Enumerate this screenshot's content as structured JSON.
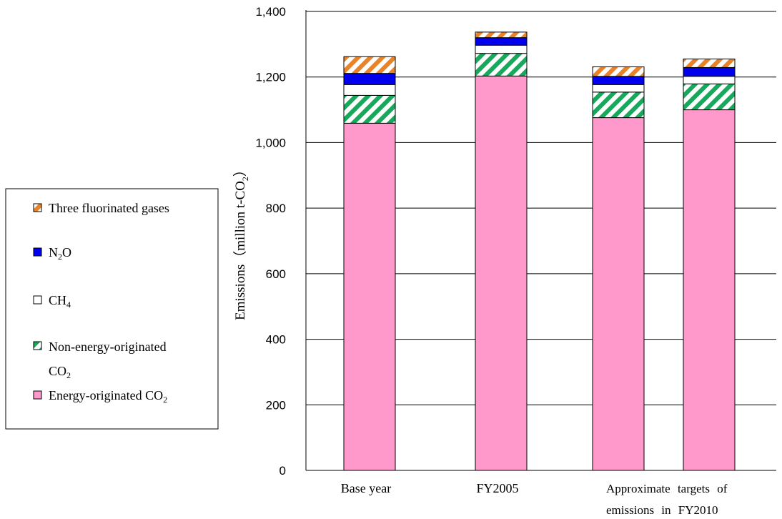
{
  "chart_data": {
    "type": "bar",
    "stacked": true,
    "ylabel": "Emissions（million t-CO2）",
    "ylim": [
      0,
      1400
    ],
    "yticks": [
      "0",
      "200",
      "400",
      "600",
      "800",
      "1,000",
      "1,200",
      "1,400"
    ],
    "ytick_values": [
      0,
      200,
      400,
      600,
      800,
      1000,
      1200,
      1400
    ],
    "gridlines": true,
    "legend_position": "left",
    "bars": [
      {
        "label": "Base year",
        "values": [
          1059,
          85,
          33,
          34,
          51
        ]
      },
      {
        "label": "FY2005",
        "values": [
          1203,
          69,
          25,
          23,
          17
        ]
      },
      {
        "label": "",
        "values": [
          1076,
          78,
          23,
          25,
          29
        ]
      },
      {
        "label": "",
        "values": [
          1100,
          79,
          23,
          27,
          26
        ]
      }
    ],
    "group_label": "Approximate targets of emissions in FY2010",
    "series": [
      {
        "name": "Energy-originated CO2",
        "color": "#ff99cc",
        "pattern": "solid"
      },
      {
        "name": "Non-energy-originated CO2",
        "color": "#17a85c",
        "pattern": "diagonal-stripe"
      },
      {
        "name": "CH4",
        "color": "#ffffff",
        "pattern": "solid"
      },
      {
        "name": "N2O",
        "color": "#0000ee",
        "pattern": "solid"
      },
      {
        "name": "Three fluorinated gases",
        "color": "#e8832a",
        "pattern": "diagonal-stripe"
      }
    ]
  },
  "legend": {
    "items": [
      {
        "text": "Three fluorinated gases",
        "sub": "",
        "tail": ""
      },
      {
        "text": "N",
        "sub": "2",
        "tail": "O"
      },
      {
        "text": "CH",
        "sub": "4",
        "tail": ""
      },
      {
        "text": "Non-energy-originated",
        "line2": "CO",
        "sub": "2",
        "tail": ""
      },
      {
        "text": "Energy-originated CO",
        "sub": "2",
        "tail": ""
      }
    ]
  },
  "labels": {
    "ylabel_main": "Emissions（million t-CO",
    "ylabel_sub": "2",
    "ylabel_tail": "）",
    "cat_base": "Base year",
    "cat_fy2005": "FY2005",
    "cat_target_line1": "Approximate targets of",
    "cat_target_line2": "emissions in FY2010"
  }
}
